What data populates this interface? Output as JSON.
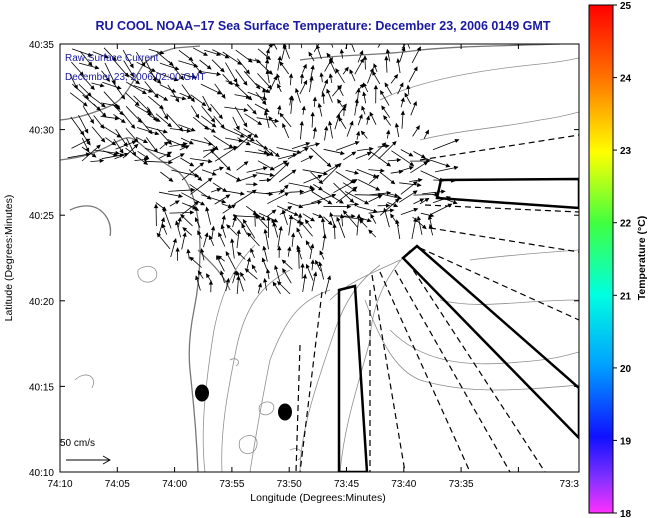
{
  "title": "RU COOL  NOAA−17  Sea Surface Temperature:  December 23, 2006 0149 GMT",
  "legend": {
    "line1": "Raw Surface Current",
    "line2": "December 23, 2006 02:00 GMT"
  },
  "scale": {
    "label": "50 cm/s"
  },
  "axes": {
    "xlabel": "Longitude (Degrees:Minutes)",
    "ylabel": "Latitude (Degrees:Minutes)",
    "xticks": [
      "74:10",
      "74:05",
      "74:00",
      "73:55",
      "73:50",
      "73:45",
      "73:40",
      "73:35",
      "73:3"
    ],
    "yticks": [
      "40:35",
      "40:30",
      "40:25",
      "40:20",
      "40:15",
      "40:10"
    ]
  },
  "colorbar": {
    "label": "Temperature (°C)",
    "ticks": [
      "25",
      "24",
      "23",
      "22",
      "21",
      "20",
      "19",
      "18"
    ],
    "range": [
      18,
      25
    ]
  }
}
